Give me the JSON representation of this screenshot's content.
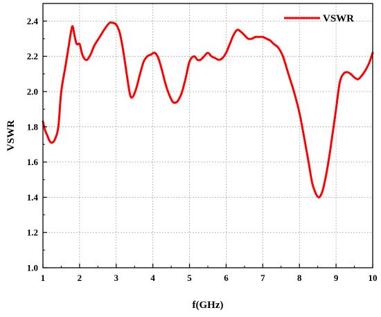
{
  "chart_data": {
    "type": "line",
    "title": "",
    "xlabel": "f(GHz)",
    "ylabel": "VSWR",
    "xlim": [
      1,
      10
    ],
    "ylim": [
      1.0,
      2.5
    ],
    "xticks": [
      "1",
      "2",
      "3",
      "4",
      "5",
      "6",
      "7",
      "8",
      "9",
      "10"
    ],
    "yticks": [
      "1.0",
      "1.2",
      "1.4",
      "1.6",
      "1.8",
      "2.0",
      "2.2",
      "2.4"
    ],
    "grid": true,
    "legend_position": "top-right",
    "series": [
      {
        "name": "VSWR",
        "color": "#ff0000",
        "x": [
          1.0,
          1.06,
          1.12,
          1.18,
          1.25,
          1.33,
          1.42,
          1.5,
          1.62,
          1.72,
          1.8,
          1.86,
          1.92,
          2.0,
          2.06,
          2.12,
          2.2,
          2.3,
          2.4,
          2.55,
          2.7,
          2.82,
          2.9,
          3.0,
          3.1,
          3.2,
          3.3,
          3.38,
          3.45,
          3.55,
          3.65,
          3.75,
          3.85,
          3.95,
          4.05,
          4.15,
          4.25,
          4.35,
          4.45,
          4.55,
          4.65,
          4.72,
          4.8,
          4.9,
          5.0,
          5.12,
          5.22,
          5.3,
          5.4,
          5.5,
          5.6,
          5.7,
          5.8,
          5.9,
          6.0,
          6.1,
          6.2,
          6.3,
          6.4,
          6.5,
          6.6,
          6.7,
          6.8,
          6.9,
          7.0,
          7.1,
          7.2,
          7.3,
          7.42,
          7.55,
          7.7,
          7.85,
          8.0,
          8.12,
          8.25,
          8.35,
          8.45,
          8.52,
          8.58,
          8.65,
          8.75,
          8.85,
          9.0,
          9.1,
          9.2,
          9.3,
          9.4,
          9.5,
          9.6,
          9.7,
          9.8,
          9.9,
          10.0
        ],
        "y": [
          1.83,
          1.78,
          1.75,
          1.72,
          1.71,
          1.73,
          1.8,
          2.0,
          2.15,
          2.28,
          2.37,
          2.32,
          2.27,
          2.27,
          2.22,
          2.19,
          2.18,
          2.21,
          2.26,
          2.31,
          2.36,
          2.39,
          2.39,
          2.38,
          2.33,
          2.22,
          2.08,
          1.98,
          1.97,
          2.02,
          2.1,
          2.17,
          2.2,
          2.21,
          2.22,
          2.19,
          2.12,
          2.04,
          1.98,
          1.94,
          1.94,
          1.96,
          2.0,
          2.08,
          2.17,
          2.2,
          2.18,
          2.18,
          2.2,
          2.22,
          2.2,
          2.19,
          2.18,
          2.19,
          2.22,
          2.27,
          2.32,
          2.35,
          2.34,
          2.32,
          2.3,
          2.3,
          2.31,
          2.31,
          2.31,
          2.3,
          2.29,
          2.27,
          2.25,
          2.2,
          2.1,
          2.0,
          1.88,
          1.75,
          1.6,
          1.48,
          1.42,
          1.4,
          1.41,
          1.45,
          1.55,
          1.68,
          1.9,
          2.05,
          2.1,
          2.11,
          2.1,
          2.08,
          2.07,
          2.09,
          2.12,
          2.16,
          2.22
        ]
      }
    ]
  }
}
